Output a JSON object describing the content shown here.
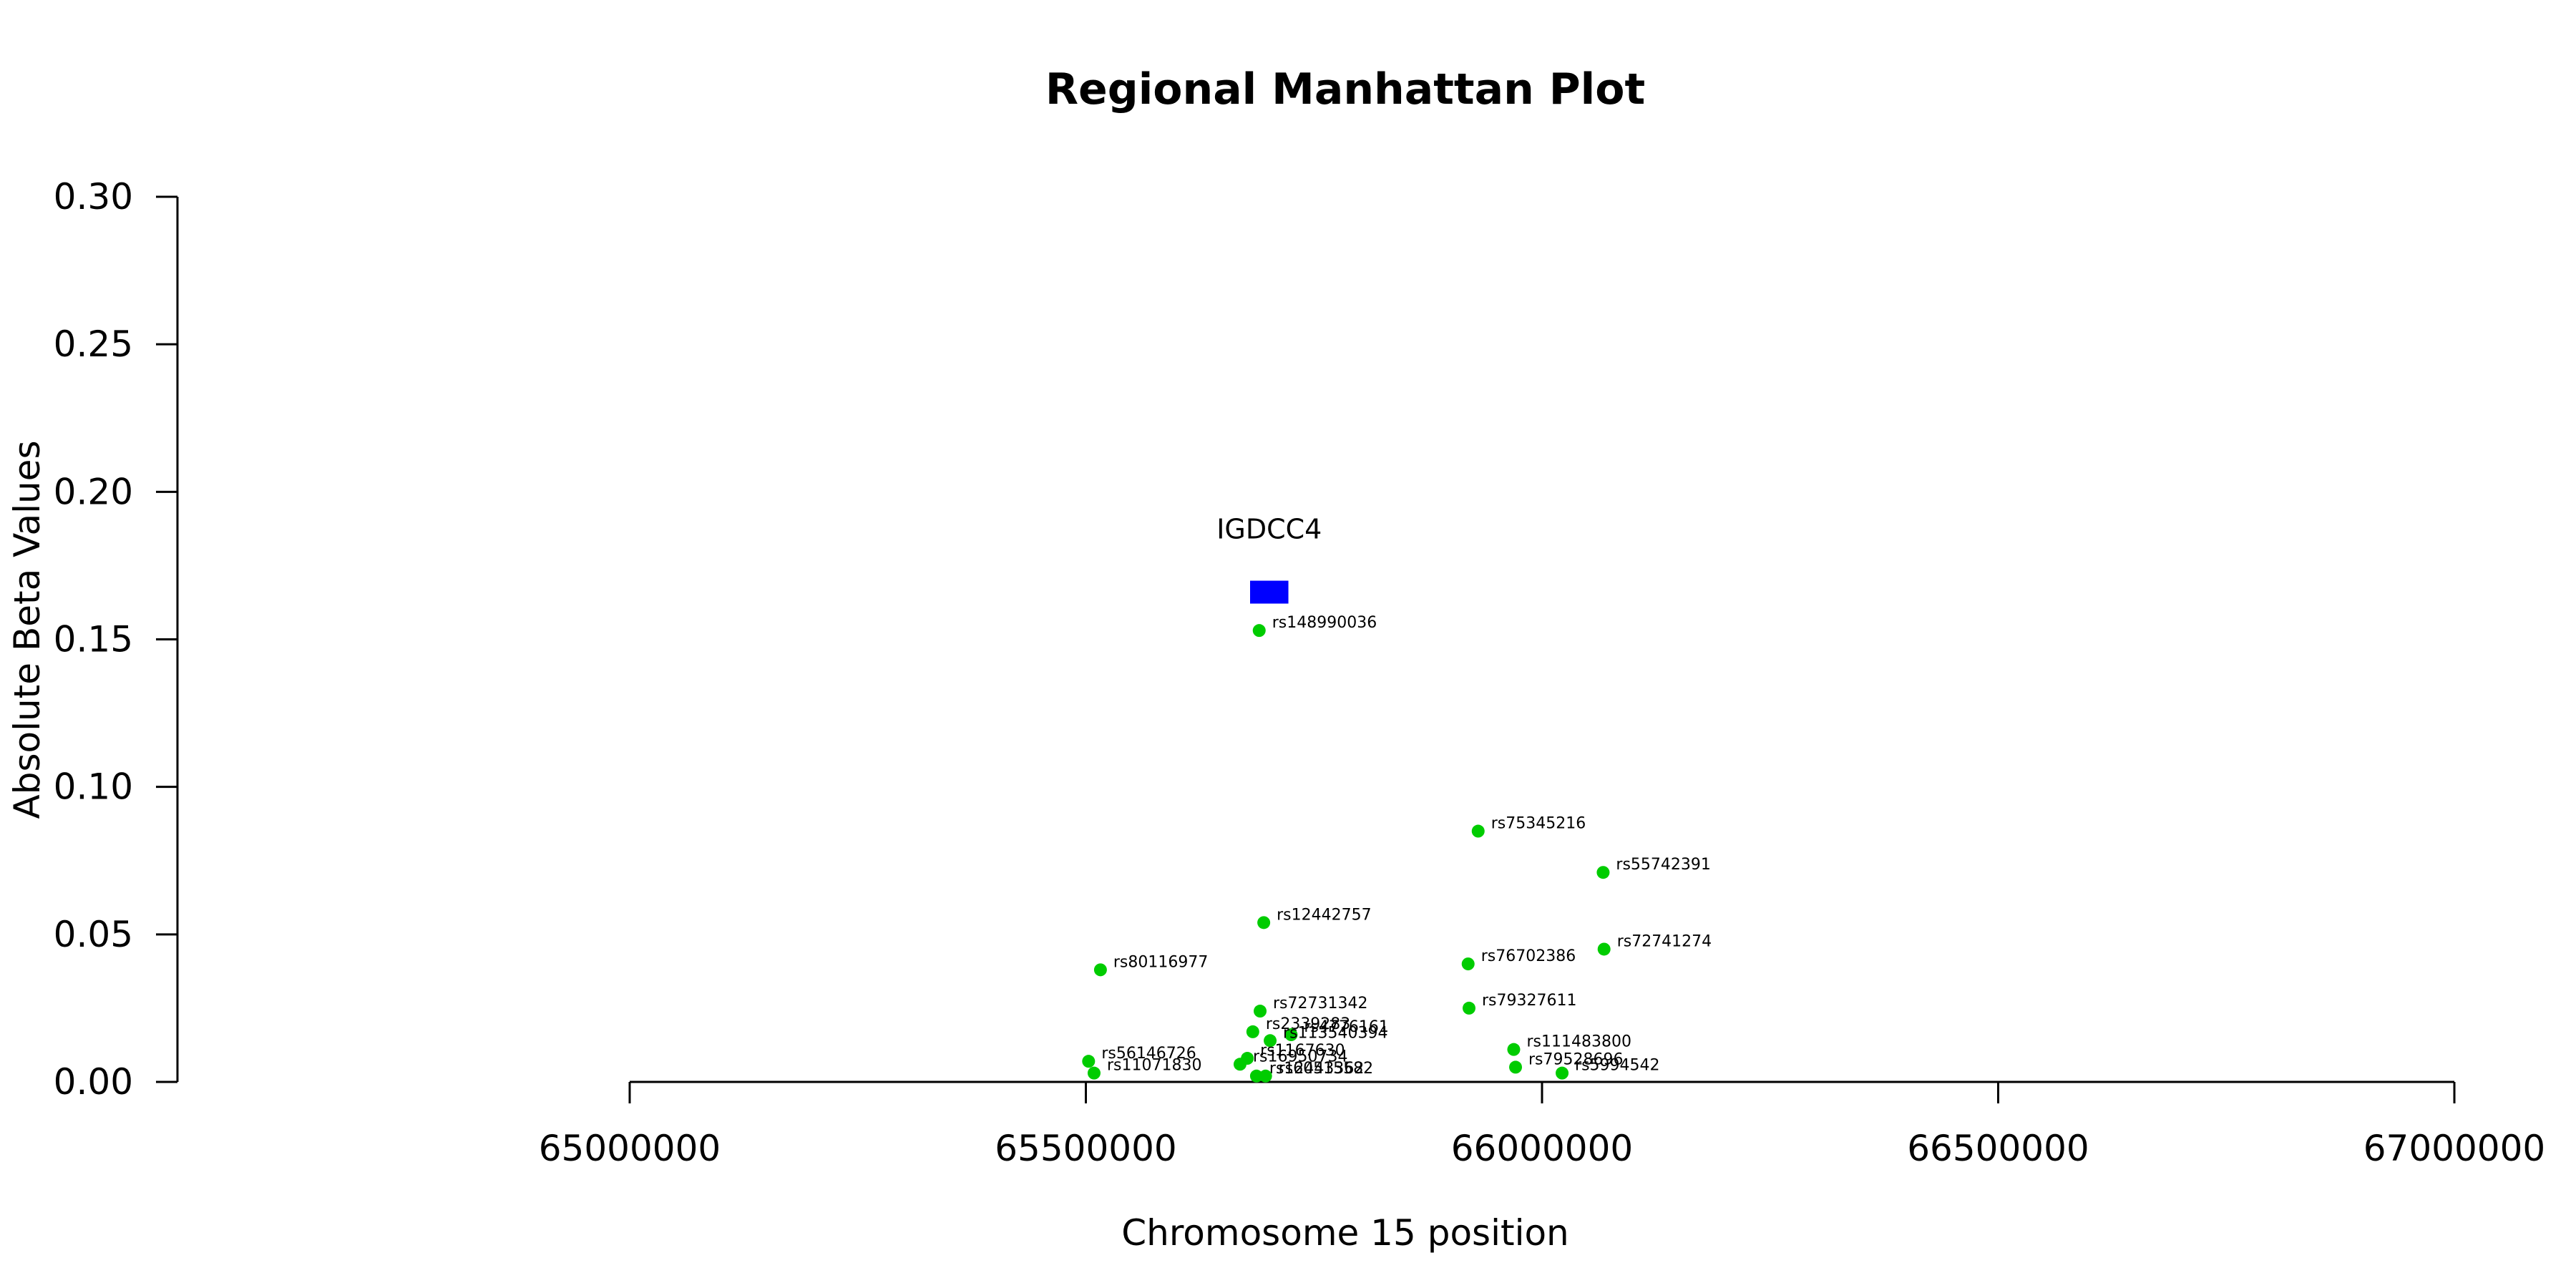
{
  "chart_data": {
    "type": "scatter",
    "title": "Regional Manhattan Plot",
    "xlabel": "Chromosome 15 position",
    "ylabel": "Absolute Beta Values",
    "xlim": [
      64500000,
      67000000
    ],
    "ylim": [
      0,
      0.3
    ],
    "x_ticks": [
      65000000,
      65500000,
      66000000,
      66500000,
      67000000
    ],
    "x_tick_labels": [
      "65000000",
      "65500000",
      "66000000",
      "66500000",
      "67000000"
    ],
    "y_ticks": [
      0,
      0.05,
      0.1,
      0.15,
      0.2,
      0.25,
      0.3
    ],
    "y_tick_labels": [
      "0.00",
      "0.05",
      "0.10",
      "0.15",
      "0.20",
      "0.25",
      "0.30"
    ],
    "point_color": "#00cc00",
    "gene_color": "#0000ff",
    "genes": [
      {
        "name": "IGDCC4",
        "start": 65680000,
        "end": 65722000,
        "y": 0.166
      }
    ],
    "points": [
      {
        "label": "rs148990036",
        "x": 65690000,
        "y": 0.153
      },
      {
        "label": "rs75345216",
        "x": 65930000,
        "y": 0.085
      },
      {
        "label": "rs55742391",
        "x": 66067000,
        "y": 0.071
      },
      {
        "label": "rs12442757",
        "x": 65695000,
        "y": 0.054
      },
      {
        "label": "rs72741274",
        "x": 66068000,
        "y": 0.045
      },
      {
        "label": "rs76702386",
        "x": 65919000,
        "y": 0.04
      },
      {
        "label": "rs80116977",
        "x": 65516000,
        "y": 0.038
      },
      {
        "label": "rs79327611",
        "x": 65920000,
        "y": 0.025
      },
      {
        "label": "rs72731342",
        "x": 65691000,
        "y": 0.024
      },
      {
        "label": "rs2339283",
        "x": 65683000,
        "y": 0.017
      },
      {
        "label": "rs4776161",
        "x": 65725000,
        "y": 0.016
      },
      {
        "label": "rs113540394",
        "x": 65702000,
        "y": 0.014
      },
      {
        "label": "rs111483800",
        "x": 65969000,
        "y": 0.011
      },
      {
        "label": "rs1167630",
        "x": 65677000,
        "y": 0.008
      },
      {
        "label": "rs16950734",
        "x": 65669000,
        "y": 0.006
      },
      {
        "label": "rs56146726",
        "x": 65503000,
        "y": 0.007
      },
      {
        "label": "rs79528696",
        "x": 65971000,
        "y": 0.005
      },
      {
        "label": "rs11071830",
        "x": 65509000,
        "y": 0.003
      },
      {
        "label": "rs5994542",
        "x": 66022000,
        "y": 0.003
      },
      {
        "label": "rs12443362",
        "x": 65687000,
        "y": 0.002
      },
      {
        "label": "rs60515582",
        "x": 65697000,
        "y": 0.002
      }
    ]
  }
}
